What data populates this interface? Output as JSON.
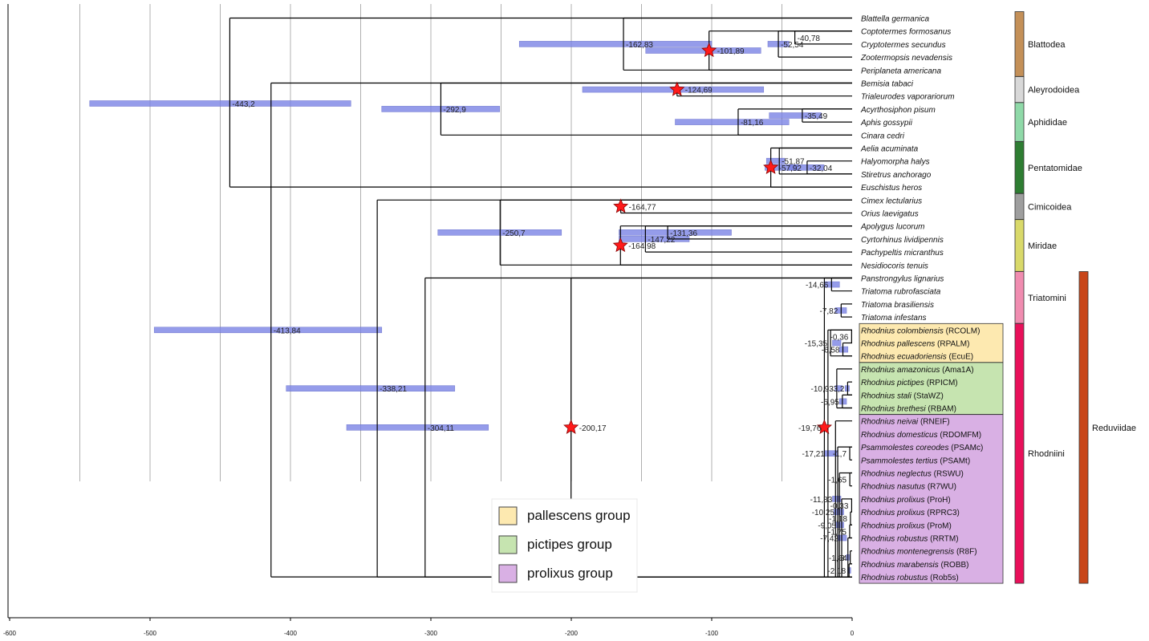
{
  "chart_data": {
    "type": "tree",
    "x_axis": {
      "range": [
        -600,
        0
      ],
      "ticks": [
        -600,
        -500,
        -400,
        -300,
        -200,
        -100,
        0
      ],
      "gridlines": [
        -550,
        -500,
        -450,
        -400,
        -350,
        -300,
        -250,
        -200,
        -150,
        -100,
        -50
      ]
    },
    "colors": {
      "hpd_bar": "#7b84e6",
      "branch": "#000000",
      "star": "#ff1a1a",
      "grid": "#b0b0b0"
    },
    "taxa": [
      [
        "Blattella germanica",
        ""
      ],
      [
        "Coptotermes formosanus",
        ""
      ],
      [
        "Cryptotermes secundus",
        ""
      ],
      [
        "Zootermopsis nevadensis",
        ""
      ],
      [
        "Periplaneta americana",
        ""
      ],
      [
        "Bemisia tabaci",
        ""
      ],
      [
        "Trialeurodes vaporariorum",
        ""
      ],
      [
        "Acyrthosiphon pisum",
        ""
      ],
      [
        "Aphis gossypii",
        ""
      ],
      [
        "Cinara cedri",
        ""
      ],
      [
        "Aelia acuminata",
        ""
      ],
      [
        "Halyomorpha halys",
        ""
      ],
      [
        "Stiretrus anchorago",
        ""
      ],
      [
        "Euschistus heros",
        ""
      ],
      [
        "Cimex lectularius",
        ""
      ],
      [
        "Orius laevigatus",
        ""
      ],
      [
        "Apolygus lucorum",
        ""
      ],
      [
        "Cyrtorhinus lividipennis",
        ""
      ],
      [
        "Pachypeltis micranthus",
        ""
      ],
      [
        "Nesidiocoris tenuis",
        ""
      ],
      [
        "Panstrongylus lignarius",
        ""
      ],
      [
        "Triatoma rubrofasciata",
        ""
      ],
      [
        "Triatoma brasiliensis",
        ""
      ],
      [
        "Triatoma infestans",
        ""
      ],
      [
        "Rhodnius colombiensis",
        " (RCOLM)"
      ],
      [
        "Rhodnius pallescens",
        " (RPALM)"
      ],
      [
        "Rhodnius ecuadoriensis",
        " (EcuE)"
      ],
      [
        "Rhodnius amazonicus",
        " (Ama1A)"
      ],
      [
        "Rhodnius pictipes",
        " (RPICM)"
      ],
      [
        "Rhodnius stali",
        " (StaWZ)"
      ],
      [
        "Rhodnius brethesi",
        " (RBAM)"
      ],
      [
        "Rhodnius neivai",
        " (RNEIF)"
      ],
      [
        "Rhodnius domesticus",
        " (RDOMFM)"
      ],
      [
        "Psammolestes coreodes",
        " (PSAMc)"
      ],
      [
        "Psammolestes tertius",
        " (PSAMt)"
      ],
      [
        "Rhodnius neglectus",
        " (RSWU)"
      ],
      [
        "Rhodnius nasutus",
        " (R7WU)"
      ],
      [
        "Rhodnius prolixus",
        " (ProH)"
      ],
      [
        "Rhodnius prolixus",
        " (RPRC3)"
      ],
      [
        "Rhodnius prolixus",
        " (ProM)"
      ],
      [
        "Rhodnius robustus",
        " (RRTM)"
      ],
      [
        "Rhodnius montenegrensis",
        " (R8F)"
      ],
      [
        "Rhodnius marabensis",
        " (ROBB)"
      ],
      [
        "Rhodnius robustus",
        " (Rob5s)"
      ]
    ],
    "nodes": [
      {
        "age": -443.2,
        "label": "-443,2",
        "hpd": [
          -543,
          -357
        ],
        "from": 0,
        "to": 13
      },
      {
        "age": -413.84,
        "label": "-413,84",
        "hpd": [
          -497,
          -335
        ],
        "from": 5,
        "to": 43
      },
      {
        "age": -338.21,
        "label": "-338,21",
        "hpd": [
          -403,
          -283
        ],
        "from": 14,
        "to": 43
      },
      {
        "age": -304.11,
        "label": "-304,11",
        "hpd": [
          -360,
          -259
        ],
        "from": 20,
        "to": 43
      },
      {
        "age": -292.9,
        "label": "-292,9",
        "hpd": [
          -335,
          -251
        ],
        "from": 5,
        "to": 9
      },
      {
        "age": -250.7,
        "label": "-250,7",
        "hpd": [
          -295,
          -207
        ],
        "from": 14,
        "to": 19
      },
      {
        "age": -200.17,
        "label": "-200,17",
        "hpd": [
          -200,
          -200
        ],
        "from": 20,
        "to": 43,
        "star": true
      },
      {
        "age": -164.77,
        "label": "-164,77",
        "from": 14,
        "to": 15,
        "star": true
      },
      {
        "age": -164.98,
        "label": "-164,98",
        "from": 16,
        "to": 19,
        "star": true
      },
      {
        "age": -162.83,
        "label": "-162,83",
        "hpd": [
          -237,
          -100
        ],
        "from": 0,
        "to": 4
      },
      {
        "age": -147.22,
        "label": "-147,22",
        "hpd": [
          -166,
          -116
        ],
        "from": 16,
        "to": 18
      },
      {
        "age": -131.36,
        "label": "-131,36",
        "hpd": [
          -166,
          -86
        ],
        "from": 16,
        "to": 17
      },
      {
        "age": -124.69,
        "label": "-124,69",
        "hpd": [
          -192,
          -63
        ],
        "from": 5,
        "to": 6,
        "star": true
      },
      {
        "age": -101.89,
        "label": "-101,89",
        "hpd": [
          -147,
          -65
        ],
        "from": 1,
        "to": 4,
        "star": true
      },
      {
        "age": -81.16,
        "label": "-81,16",
        "hpd": [
          -126,
          -45
        ],
        "from": 7,
        "to": 9
      },
      {
        "age": -57.92,
        "label": "-57,92",
        "hpd": [
          -62,
          -39
        ],
        "from": 10,
        "to": 13,
        "star": true
      },
      {
        "age": -52.54,
        "label": "-52,54",
        "hpd": [
          -60,
          -45
        ],
        "from": 1,
        "to": 3
      },
      {
        "age": -51.87,
        "label": "-51,87",
        "hpd": [
          -61,
          -48
        ],
        "from": 10,
        "to": 12
      },
      {
        "age": -40.78,
        "label": "-40,78",
        "from": 1,
        "to": 2
      },
      {
        "age": -35.49,
        "label": "-35,49",
        "hpd": [
          -59,
          -22
        ],
        "from": 7,
        "to": 8
      },
      {
        "age": -32.04,
        "label": "-32,04",
        "hpd": [
          -45,
          -20
        ],
        "from": 11,
        "to": 12
      },
      {
        "age": -19.76,
        "label": "-19,76",
        "from": 20,
        "to": 43,
        "star": true
      },
      {
        "age": -17.21,
        "label": "-17,21",
        "hpd": [
          -20,
          -10
        ],
        "from": 24,
        "to": 43
      },
      {
        "age": -15.35,
        "label": "-15,35",
        "hpd": [
          -14,
          -8
        ],
        "from": 24,
        "to": 26
      },
      {
        "age": -14.66,
        "label": "-14,66",
        "hpd": [
          -20,
          -9
        ],
        "from": 20,
        "to": 21
      },
      {
        "age": -11.83,
        "label": "-11,83",
        "hpd": [
          -14,
          -8
        ],
        "from": 31,
        "to": 43
      },
      {
        "age": -10.93,
        "label": "-10,93",
        "hpd": [
          -12,
          -7
        ],
        "from": 27,
        "to": 30
      },
      {
        "age": -10.25,
        "label": "-10,25",
        "hpd": [
          -13,
          -6
        ],
        "from": 33,
        "to": 43
      },
      {
        "age": -9.05,
        "label": "-9,05",
        "hpd": [
          -12,
          -6
        ],
        "from": 35,
        "to": 43
      },
      {
        "age": -7.82,
        "label": "-7,82",
        "hpd": [
          -12,
          -4
        ],
        "from": 22,
        "to": 23
      },
      {
        "age": -7.42,
        "label": "-7,42",
        "hpd": [
          -10,
          -4
        ],
        "from": 37,
        "to": 43
      },
      {
        "age": -6.95,
        "label": "-6,95",
        "hpd": [
          -9,
          -4
        ],
        "from": 29,
        "to": 30
      },
      {
        "age": -6.58,
        "label": "-6,58",
        "hpd": [
          -9,
          -3
        ],
        "from": 25,
        "to": 26
      },
      {
        "age": -3.2,
        "label": "-3,2",
        "hpd": [
          -5,
          -2
        ],
        "from": 28,
        "to": 29
      },
      {
        "age": -3,
        "label": "-3",
        "hpd": [
          -4,
          -2
        ],
        "from": 40,
        "to": 43
      },
      {
        "age": -2.18,
        "label": "-2,18",
        "hpd": [
          -3,
          -1
        ],
        "from": 42,
        "to": 43
      },
      {
        "age": -1.34,
        "label": "-1,34",
        "from": 41,
        "to": 42
      },
      {
        "age": -1.7,
        "label": "-1,7",
        "from": 33,
        "to": 34
      },
      {
        "age": -1.65,
        "label": "-1,65",
        "from": 35,
        "to": 36
      },
      {
        "age": -1.18,
        "label": "-1,18",
        "from": 38,
        "to": 39
      },
      {
        "age": -1.75,
        "label": "-1,75",
        "from": 39,
        "to": 40
      },
      {
        "age": -0.36,
        "label": "-0,36",
        "from": 24,
        "to": 25
      },
      {
        "age": -0.33,
        "label": "-0,33",
        "from": 37,
        "to": 38
      }
    ],
    "clades": [
      {
        "name": "Blattodea",
        "from": 0,
        "to": 4,
        "color": "#c49058"
      },
      {
        "name": "Aleyrodoidea",
        "from": 5,
        "to": 6,
        "color": "#d8d8d8"
      },
      {
        "name": "Aphididae",
        "from": 7,
        "to": 9,
        "color": "#8fd9a8"
      },
      {
        "name": "Pentatomidae",
        "from": 10,
        "to": 13,
        "color": "#2e7d32"
      },
      {
        "name": "Cimicoidea",
        "from": 14,
        "to": 15,
        "color": "#9e9e9e"
      },
      {
        "name": "Miridae",
        "from": 16,
        "to": 19,
        "color": "#d9d96a"
      },
      {
        "name": "Triatomini",
        "from": 20,
        "to": 23,
        "color": "#f08cb0"
      },
      {
        "name": "Rhodniini",
        "from": 24,
        "to": 43,
        "color": "#e8105a"
      }
    ],
    "outer_clade": {
      "name": "Reduviidae",
      "from": 20,
      "to": 43,
      "color": "#c8461a"
    },
    "groups": [
      {
        "name": "pallescens group",
        "from": 24,
        "to": 26,
        "color": "#fde9b0"
      },
      {
        "name": "pictipes group",
        "from": 27,
        "to": 30,
        "color": "#c6e4b0"
      },
      {
        "name": "prolixus group",
        "from": 31,
        "to": 43,
        "color": "#d9b0e4"
      }
    ]
  }
}
